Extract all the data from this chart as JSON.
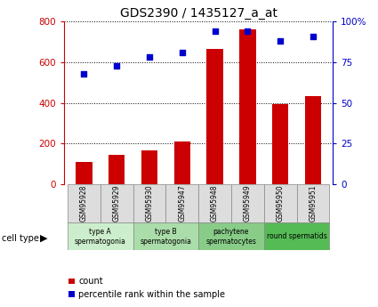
{
  "title": "GDS2390 / 1435127_a_at",
  "samples": [
    "GSM95928",
    "GSM95929",
    "GSM95930",
    "GSM95947",
    "GSM95948",
    "GSM95949",
    "GSM95950",
    "GSM95951"
  ],
  "counts": [
    110,
    143,
    165,
    210,
    665,
    760,
    393,
    435
  ],
  "percentiles": [
    68,
    73,
    78,
    81,
    94,
    94,
    88,
    91
  ],
  "cell_types": [
    {
      "label": "type A\nspermatogonia",
      "color": "#cceecc",
      "span": [
        0,
        2
      ]
    },
    {
      "label": "type B\nspermatogonia",
      "color": "#aaddaa",
      "span": [
        2,
        4
      ]
    },
    {
      "label": "pachytene\nspermatocytes",
      "color": "#88cc88",
      "span": [
        4,
        6
      ]
    },
    {
      "label": "round spermatids",
      "color": "#55bb55",
      "span": [
        6,
        8
      ]
    }
  ],
  "bar_color": "#cc0000",
  "dot_color": "#0000cc",
  "left_ylim": [
    0,
    800
  ],
  "right_ylim": [
    0,
    100
  ],
  "left_yticks": [
    0,
    200,
    400,
    600,
    800
  ],
  "right_yticks": [
    0,
    25,
    50,
    75,
    100
  ],
  "right_yticklabels": [
    "0",
    "25",
    "50",
    "75",
    "100%"
  ],
  "left_color": "#cc0000",
  "right_color": "#0000cc",
  "grid_color": "black",
  "sample_box_color": "#dddddd",
  "fig_width": 4.25,
  "fig_height": 3.45
}
